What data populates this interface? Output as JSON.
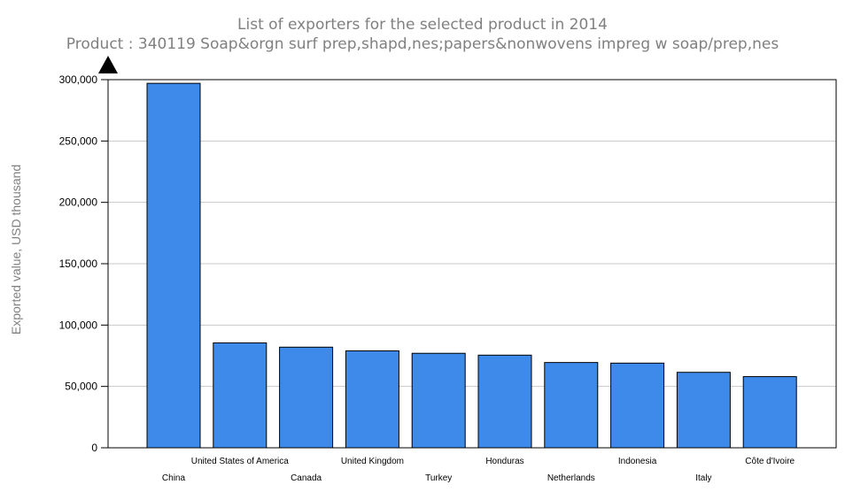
{
  "chart_data": {
    "type": "bar",
    "title": "List of exporters for the selected product in 2014",
    "subtitle": "Product : 340119 Soap&orgn surf prep,shapd,nes;papers&nonwovens impreg w soap/prep,nes",
    "ylabel": "Exported value, USD thousand",
    "xlabel": "",
    "ylim": [
      0,
      300000
    ],
    "yticks": [
      0,
      50000,
      100000,
      150000,
      200000,
      250000,
      300000
    ],
    "ytick_labels": [
      "0",
      "50,000",
      "100,000",
      "150,000",
      "200,000",
      "250,000",
      "300,000"
    ],
    "grid": true,
    "legend": "none",
    "categories": [
      "China",
      "United States of America",
      "Canada",
      "United Kingdom",
      "Turkey",
      "Honduras",
      "Netherlands",
      "Indonesia",
      "Italy",
      "Côte d'Ivoire"
    ],
    "values": [
      297000,
      85500,
      82000,
      79000,
      77000,
      75500,
      69500,
      69000,
      61500,
      58000
    ]
  },
  "colors": {
    "bar": "#3e8aeb",
    "grid": "#c8c8c8",
    "axis": "#000000"
  }
}
